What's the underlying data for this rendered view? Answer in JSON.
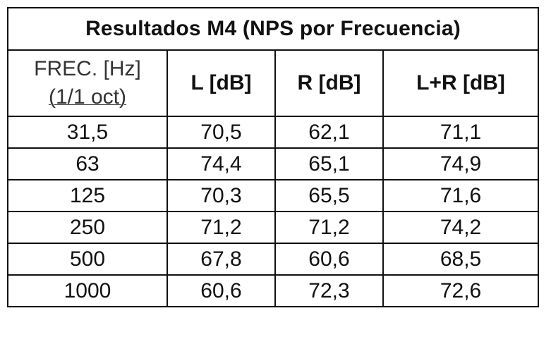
{
  "table": {
    "title": "Resultados M4 (NPS por Frecuencia)",
    "headers": {
      "freq_line1": "FREC. [Hz]",
      "freq_line2": "(1/1 oct)",
      "left": "L [dB]",
      "right": "R [dB]",
      "sum": "L+R [dB]"
    },
    "rows": [
      {
        "freq": "31,5",
        "l": "70,5",
        "r": "62,1",
        "lr": "71,1"
      },
      {
        "freq": "63",
        "l": "74,4",
        "r": "65,1",
        "lr": "74,9"
      },
      {
        "freq": "125",
        "l": "70,3",
        "r": "65,5",
        "lr": "71,6"
      },
      {
        "freq": "250",
        "l": "71,2",
        "r": "71,2",
        "lr": "74,2"
      },
      {
        "freq": "500",
        "l": "67,8",
        "r": "60,6",
        "lr": "68,5"
      },
      {
        "freq": "1000",
        "l": "60,6",
        "r": "72,3",
        "lr": "72,6"
      }
    ]
  }
}
